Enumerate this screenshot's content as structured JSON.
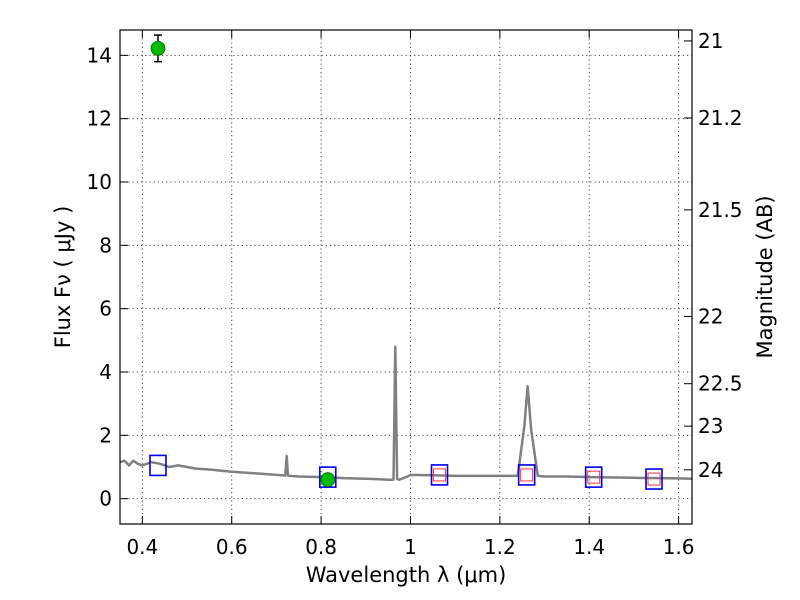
{
  "chart_data": {
    "type": "scatter",
    "xlabel": "Wavelength  λ (μm)",
    "ylabel": "Flux  Fν  ( μJy )",
    "y2label": "Magnitude (AB)",
    "xlim": [
      0.35,
      1.63
    ],
    "ylim": [
      -0.8,
      14.8
    ],
    "grid": true,
    "x_ticks": [
      0.4,
      0.6,
      0.8,
      1.0,
      1.2,
      1.4,
      1.6
    ],
    "x_tick_labels": [
      "0.4",
      "0.6",
      "0.8",
      "1",
      "1.2",
      "1.4",
      "1.6"
    ],
    "y_ticks": [
      0,
      2,
      4,
      6,
      8,
      10,
      12,
      14
    ],
    "y_tick_labels": [
      "0",
      "2",
      "4",
      "6",
      "8",
      "10",
      "12",
      "14"
    ],
    "y2_tick_labels": [
      "21",
      "21.2",
      "21.5",
      "22",
      "22.5",
      "23",
      "24"
    ],
    "y2_tick_values": [
      21,
      21.2,
      21.5,
      22,
      22.5,
      23,
      24
    ],
    "colors": {
      "spectrum": "#808080",
      "observed": "#00bb00",
      "model": "#0000ee",
      "model_inner": "#ff3333"
    },
    "series": [
      {
        "kind": "line",
        "x": [
          0.35,
          0.36,
          0.37,
          0.38,
          0.39,
          0.4,
          0.42,
          0.44,
          0.46,
          0.48,
          0.5,
          0.52,
          0.55,
          0.6,
          0.65,
          0.7,
          0.72,
          0.723,
          0.726,
          0.73,
          0.75,
          0.8,
          0.85,
          0.9,
          0.95,
          0.962,
          0.966,
          0.97,
          0.975,
          0.99,
          1.0,
          1.05,
          1.1,
          1.15,
          1.2,
          1.24,
          1.255,
          1.262,
          1.27,
          1.285,
          1.3,
          1.35,
          1.4,
          1.5,
          1.6,
          1.63
        ],
        "y": [
          1.15,
          1.2,
          1.05,
          1.2,
          1.1,
          1.05,
          1.15,
          1.1,
          1.0,
          1.05,
          1.0,
          0.95,
          0.92,
          0.85,
          0.8,
          0.75,
          0.73,
          1.35,
          0.73,
          0.72,
          0.7,
          0.68,
          0.65,
          0.63,
          0.6,
          0.6,
          4.8,
          0.62,
          0.6,
          0.68,
          0.75,
          0.74,
          0.72,
          0.72,
          0.72,
          0.72,
          2.3,
          3.55,
          2.2,
          0.72,
          0.7,
          0.7,
          0.68,
          0.66,
          0.64,
          0.63
        ]
      },
      {
        "kind": "points",
        "x": [
          0.435,
          0.815
        ],
        "y": [
          14.22,
          0.6
        ],
        "yerr": [
          0.42,
          0.05
        ]
      },
      {
        "kind": "boxes",
        "x": [
          0.435,
          0.815,
          1.065,
          1.26,
          1.41,
          1.545
        ],
        "y": [
          1.05,
          0.68,
          0.75,
          0.75,
          0.68,
          0.62
        ]
      },
      {
        "kind": "inner_boxes",
        "x": [
          1.065,
          1.26,
          1.41,
          1.545
        ],
        "y": [
          0.75,
          0.75,
          0.68,
          0.62
        ]
      }
    ]
  }
}
